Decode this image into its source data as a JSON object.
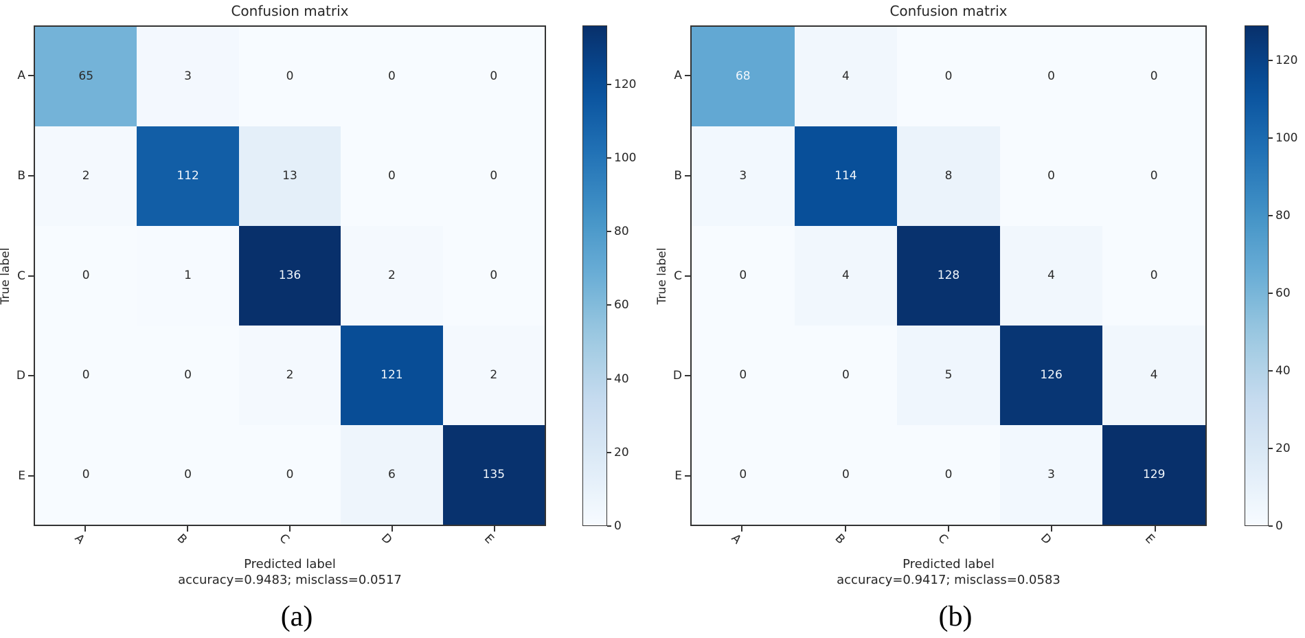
{
  "page": {
    "background": "#ffffff"
  },
  "chart_data": [
    {
      "type": "heatmap",
      "title": "Confusion matrix",
      "xlabel": "Predicted label",
      "ylabel": "True label",
      "stats_line": "accuracy=0.9483; misclass=0.0517",
      "caption": "(a)",
      "x_categories": [
        "A",
        "B",
        "C",
        "D",
        "E"
      ],
      "y_categories": [
        "A",
        "B",
        "C",
        "D",
        "E"
      ],
      "matrix": [
        [
          65,
          3,
          0,
          0,
          0
        ],
        [
          2,
          112,
          13,
          0,
          0
        ],
        [
          0,
          1,
          136,
          2,
          0
        ],
        [
          0,
          0,
          2,
          121,
          2
        ],
        [
          0,
          0,
          0,
          6,
          135
        ]
      ],
      "vmin": 0,
      "vmax": 136,
      "colorbar_ticks": [
        0,
        20,
        40,
        60,
        80,
        100,
        120
      ],
      "colormap": {
        "name": "Blues",
        "low": "#f7fbff",
        "high": "#08306b"
      },
      "legend_position": "right-colorbar",
      "grid": false,
      "tick_rotation_x": 45
    },
    {
      "type": "heatmap",
      "title": "Confusion matrix",
      "xlabel": "Predicted label",
      "ylabel": "True label",
      "stats_line": "accuracy=0.9417; misclass=0.0583",
      "caption": "(b)",
      "x_categories": [
        "A",
        "B",
        "C",
        "D",
        "E"
      ],
      "y_categories": [
        "A",
        "B",
        "C",
        "D",
        "E"
      ],
      "matrix": [
        [
          68,
          4,
          0,
          0,
          0
        ],
        [
          3,
          114,
          8,
          0,
          0
        ],
        [
          0,
          4,
          128,
          4,
          0
        ],
        [
          0,
          0,
          5,
          126,
          4
        ],
        [
          0,
          0,
          0,
          3,
          129
        ]
      ],
      "vmin": 0,
      "vmax": 129,
      "colorbar_ticks": [
        0,
        20,
        40,
        60,
        80,
        100,
        120
      ],
      "colormap": {
        "name": "Blues",
        "low": "#f7fbff",
        "high": "#08306b"
      },
      "legend_position": "right-colorbar",
      "grid": false,
      "tick_rotation_x": 45
    }
  ]
}
